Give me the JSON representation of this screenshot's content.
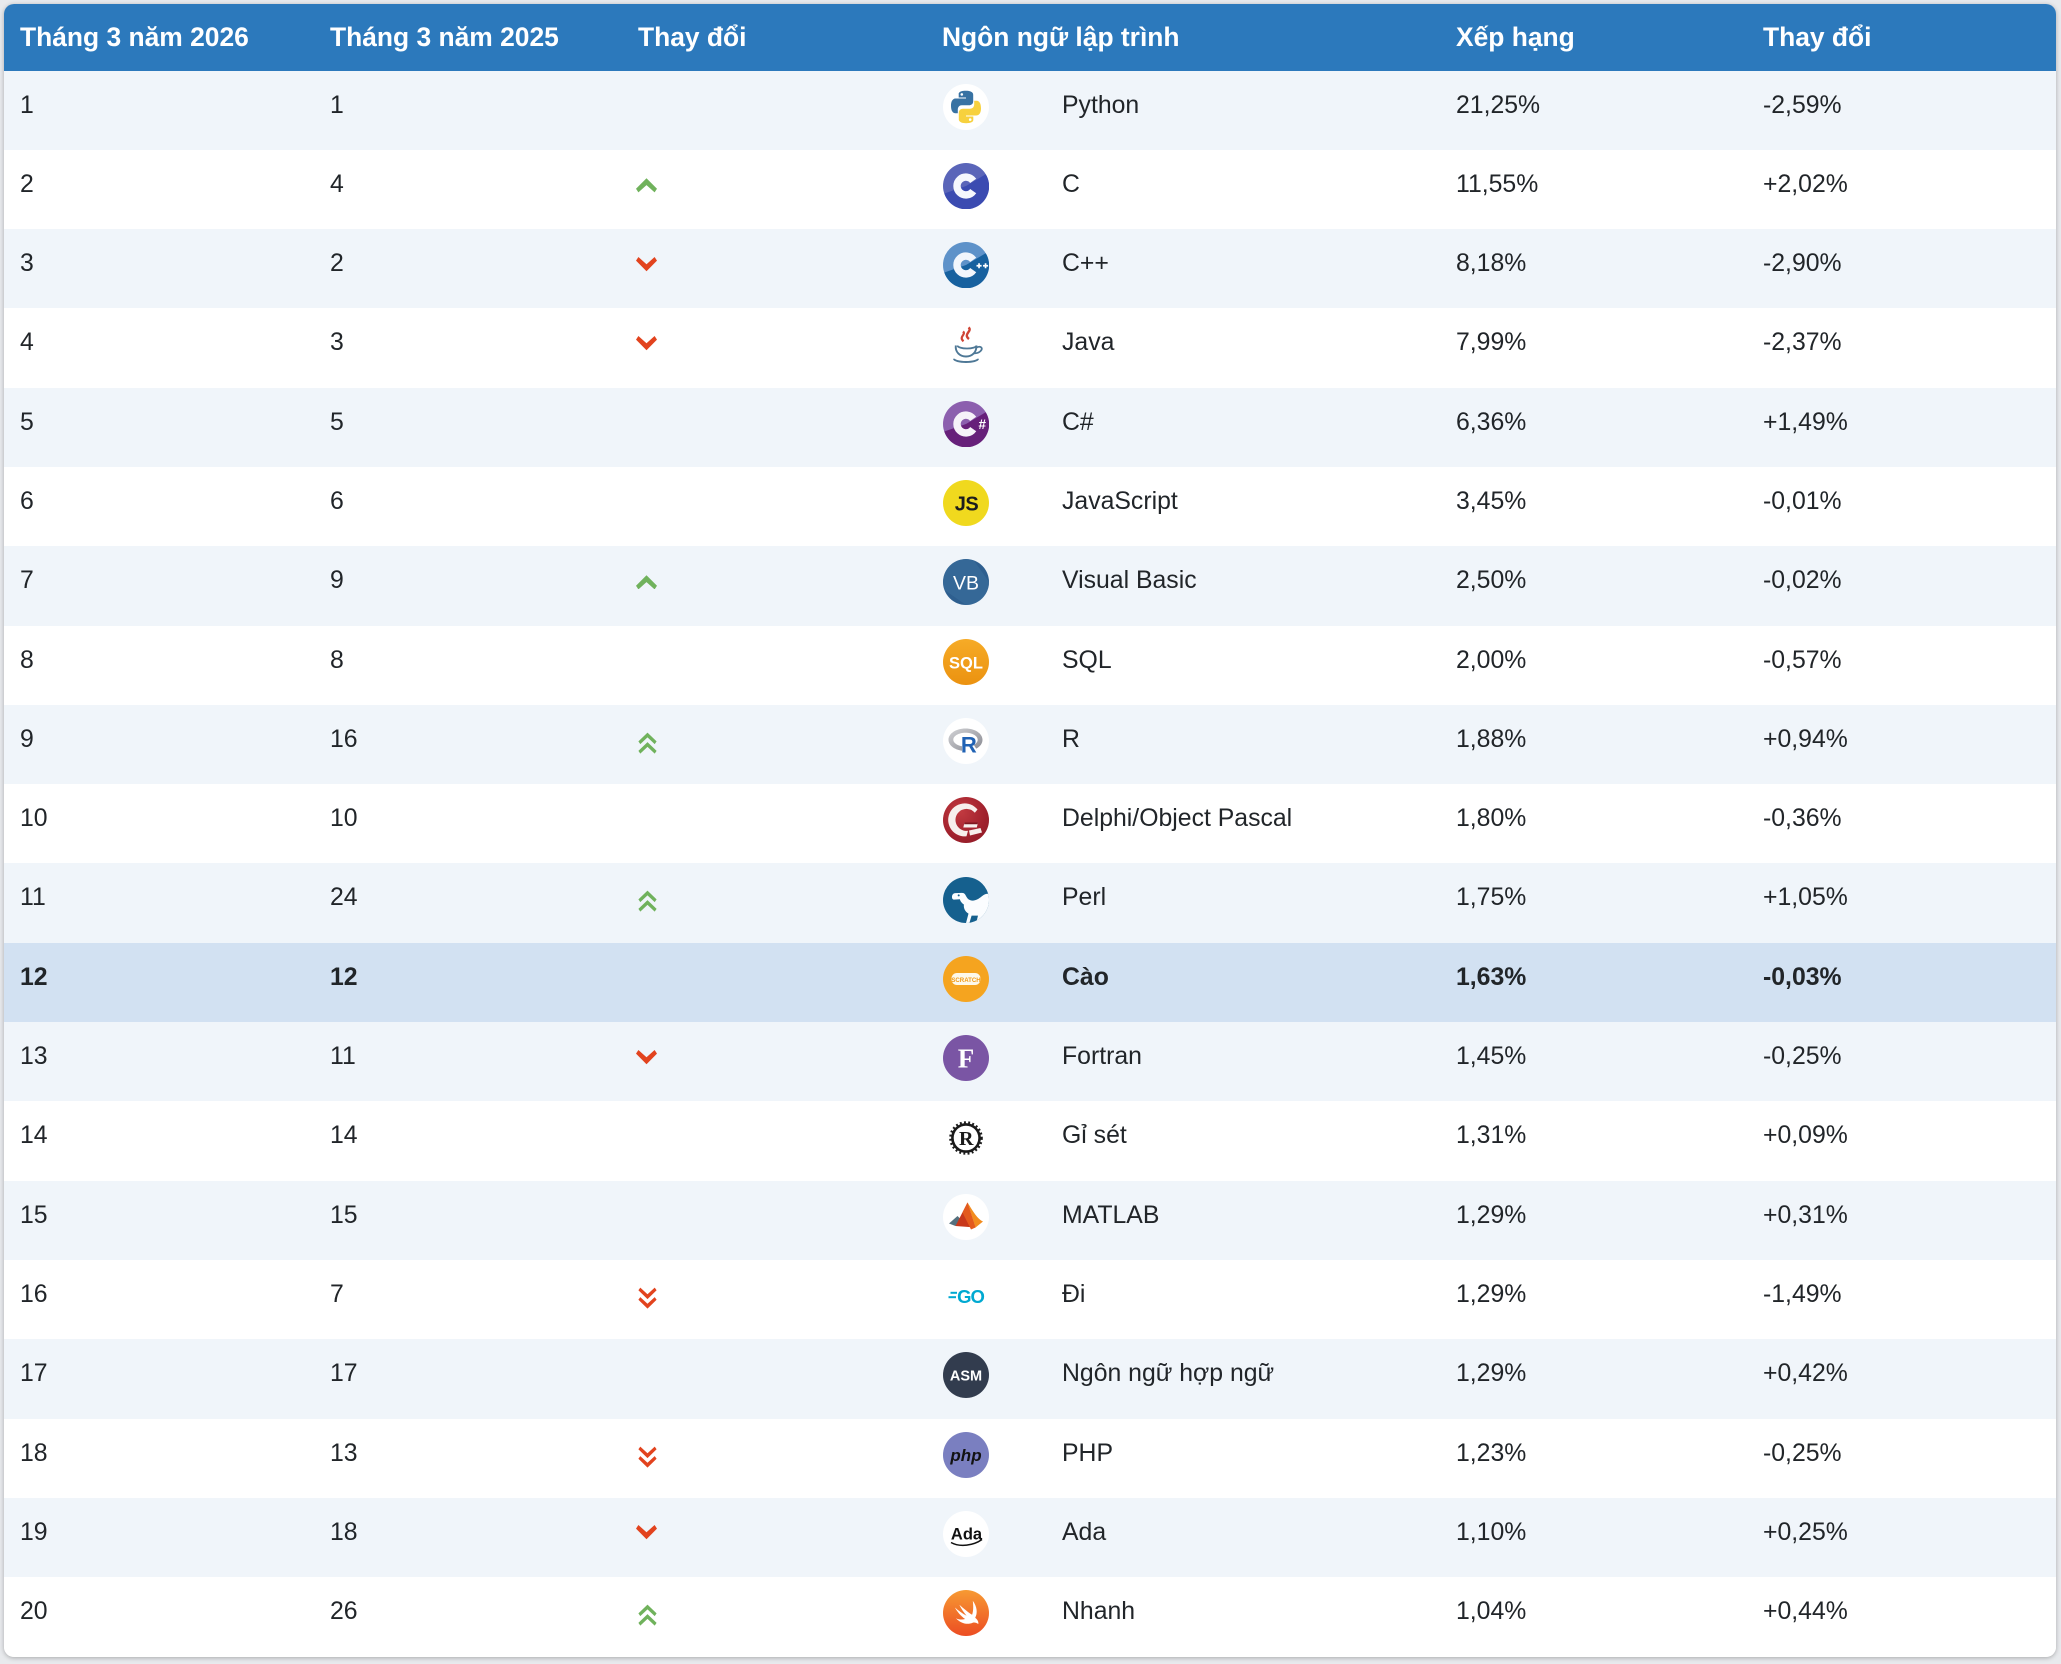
{
  "table": {
    "columns": [
      {
        "label": "Tháng 3 năm 2026"
      },
      {
        "label": "Tháng 3 năm 2025"
      },
      {
        "label": "Thay đổi"
      },
      {
        "label": "Ngôn ngữ lập trình"
      },
      {
        "label": "Xếp hạng"
      },
      {
        "label": "Thay đổi"
      }
    ],
    "rows": [
      {
        "rank": "1",
        "prev": "1",
        "change": "none",
        "icon": "python",
        "lang": "Python",
        "rating": "21,25%",
        "delta": "-2,59%",
        "highlight": false
      },
      {
        "rank": "2",
        "prev": "4",
        "change": "up",
        "icon": "c",
        "lang": "C",
        "rating": "11,55%",
        "delta": "+2,02%",
        "highlight": false
      },
      {
        "rank": "3",
        "prev": "2",
        "change": "down",
        "icon": "cpp",
        "lang": "C++",
        "rating": "8,18%",
        "delta": "-2,90%",
        "highlight": false
      },
      {
        "rank": "4",
        "prev": "3",
        "change": "down",
        "icon": "java",
        "lang": "Java",
        "rating": "7,99%",
        "delta": "-2,37%",
        "highlight": false
      },
      {
        "rank": "5",
        "prev": "5",
        "change": "none",
        "icon": "csharp",
        "lang": "C#",
        "rating": "6,36%",
        "delta": "+1,49%",
        "highlight": false
      },
      {
        "rank": "6",
        "prev": "6",
        "change": "none",
        "icon": "js",
        "lang": "JavaScript",
        "rating": "3,45%",
        "delta": "-0,01%",
        "highlight": false
      },
      {
        "rank": "7",
        "prev": "9",
        "change": "up",
        "icon": "vb",
        "lang": "Visual Basic",
        "rating": "2,50%",
        "delta": "-0,02%",
        "highlight": false
      },
      {
        "rank": "8",
        "prev": "8",
        "change": "none",
        "icon": "sql",
        "lang": "SQL",
        "rating": "2,00%",
        "delta": "-0,57%",
        "highlight": false
      },
      {
        "rank": "9",
        "prev": "16",
        "change": "double-up",
        "icon": "r",
        "lang": "R",
        "rating": "1,88%",
        "delta": "+0,94%",
        "highlight": false
      },
      {
        "rank": "10",
        "prev": "10",
        "change": "none",
        "icon": "delphi",
        "lang": "Delphi/Object Pascal",
        "rating": "1,80%",
        "delta": "-0,36%",
        "highlight": false
      },
      {
        "rank": "11",
        "prev": "24",
        "change": "double-up",
        "icon": "perl",
        "lang": "Perl",
        "rating": "1,75%",
        "delta": "+1,05%",
        "highlight": false
      },
      {
        "rank": "12",
        "prev": "12",
        "change": "none",
        "icon": "scratch",
        "lang": "Cào",
        "rating": "1,63%",
        "delta": "-0,03%",
        "highlight": true
      },
      {
        "rank": "13",
        "prev": "11",
        "change": "down",
        "icon": "fortran",
        "lang": "Fortran",
        "rating": "1,45%",
        "delta": "-0,25%",
        "highlight": false
      },
      {
        "rank": "14",
        "prev": "14",
        "change": "none",
        "icon": "rust",
        "lang": "Gỉ sét",
        "rating": "1,31%",
        "delta": "+0,09%",
        "highlight": false
      },
      {
        "rank": "15",
        "prev": "15",
        "change": "none",
        "icon": "matlab",
        "lang": "MATLAB",
        "rating": "1,29%",
        "delta": "+0,31%",
        "highlight": false
      },
      {
        "rank": "16",
        "prev": "7",
        "change": "double-down",
        "icon": "go",
        "lang": "Đi",
        "rating": "1,29%",
        "delta": "-1,49%",
        "highlight": false
      },
      {
        "rank": "17",
        "prev": "17",
        "change": "none",
        "icon": "asm",
        "lang": "Ngôn ngữ hợp ngữ",
        "rating": "1,29%",
        "delta": "+0,42%",
        "highlight": false
      },
      {
        "rank": "18",
        "prev": "13",
        "change": "double-down",
        "icon": "php",
        "lang": "PHP",
        "rating": "1,23%",
        "delta": "-0,25%",
        "highlight": false
      },
      {
        "rank": "19",
        "prev": "18",
        "change": "down",
        "icon": "ada",
        "lang": "Ada",
        "rating": "1,10%",
        "delta": "+0,25%",
        "highlight": false
      },
      {
        "rank": "20",
        "prev": "26",
        "change": "double-up",
        "icon": "swift",
        "lang": "Nhanh",
        "rating": "1,04%",
        "delta": "+0,44%",
        "highlight": false
      }
    ]
  },
  "colors": {
    "header_bg": "#2c79bc",
    "stripe_bg": "#f0f5fa",
    "highlight_bg": "#d2e1f2",
    "page_bg": "#e8eaed",
    "text": "#212529",
    "arrow_up": "#70b25c",
    "arrow_down": "#e2431e"
  }
}
